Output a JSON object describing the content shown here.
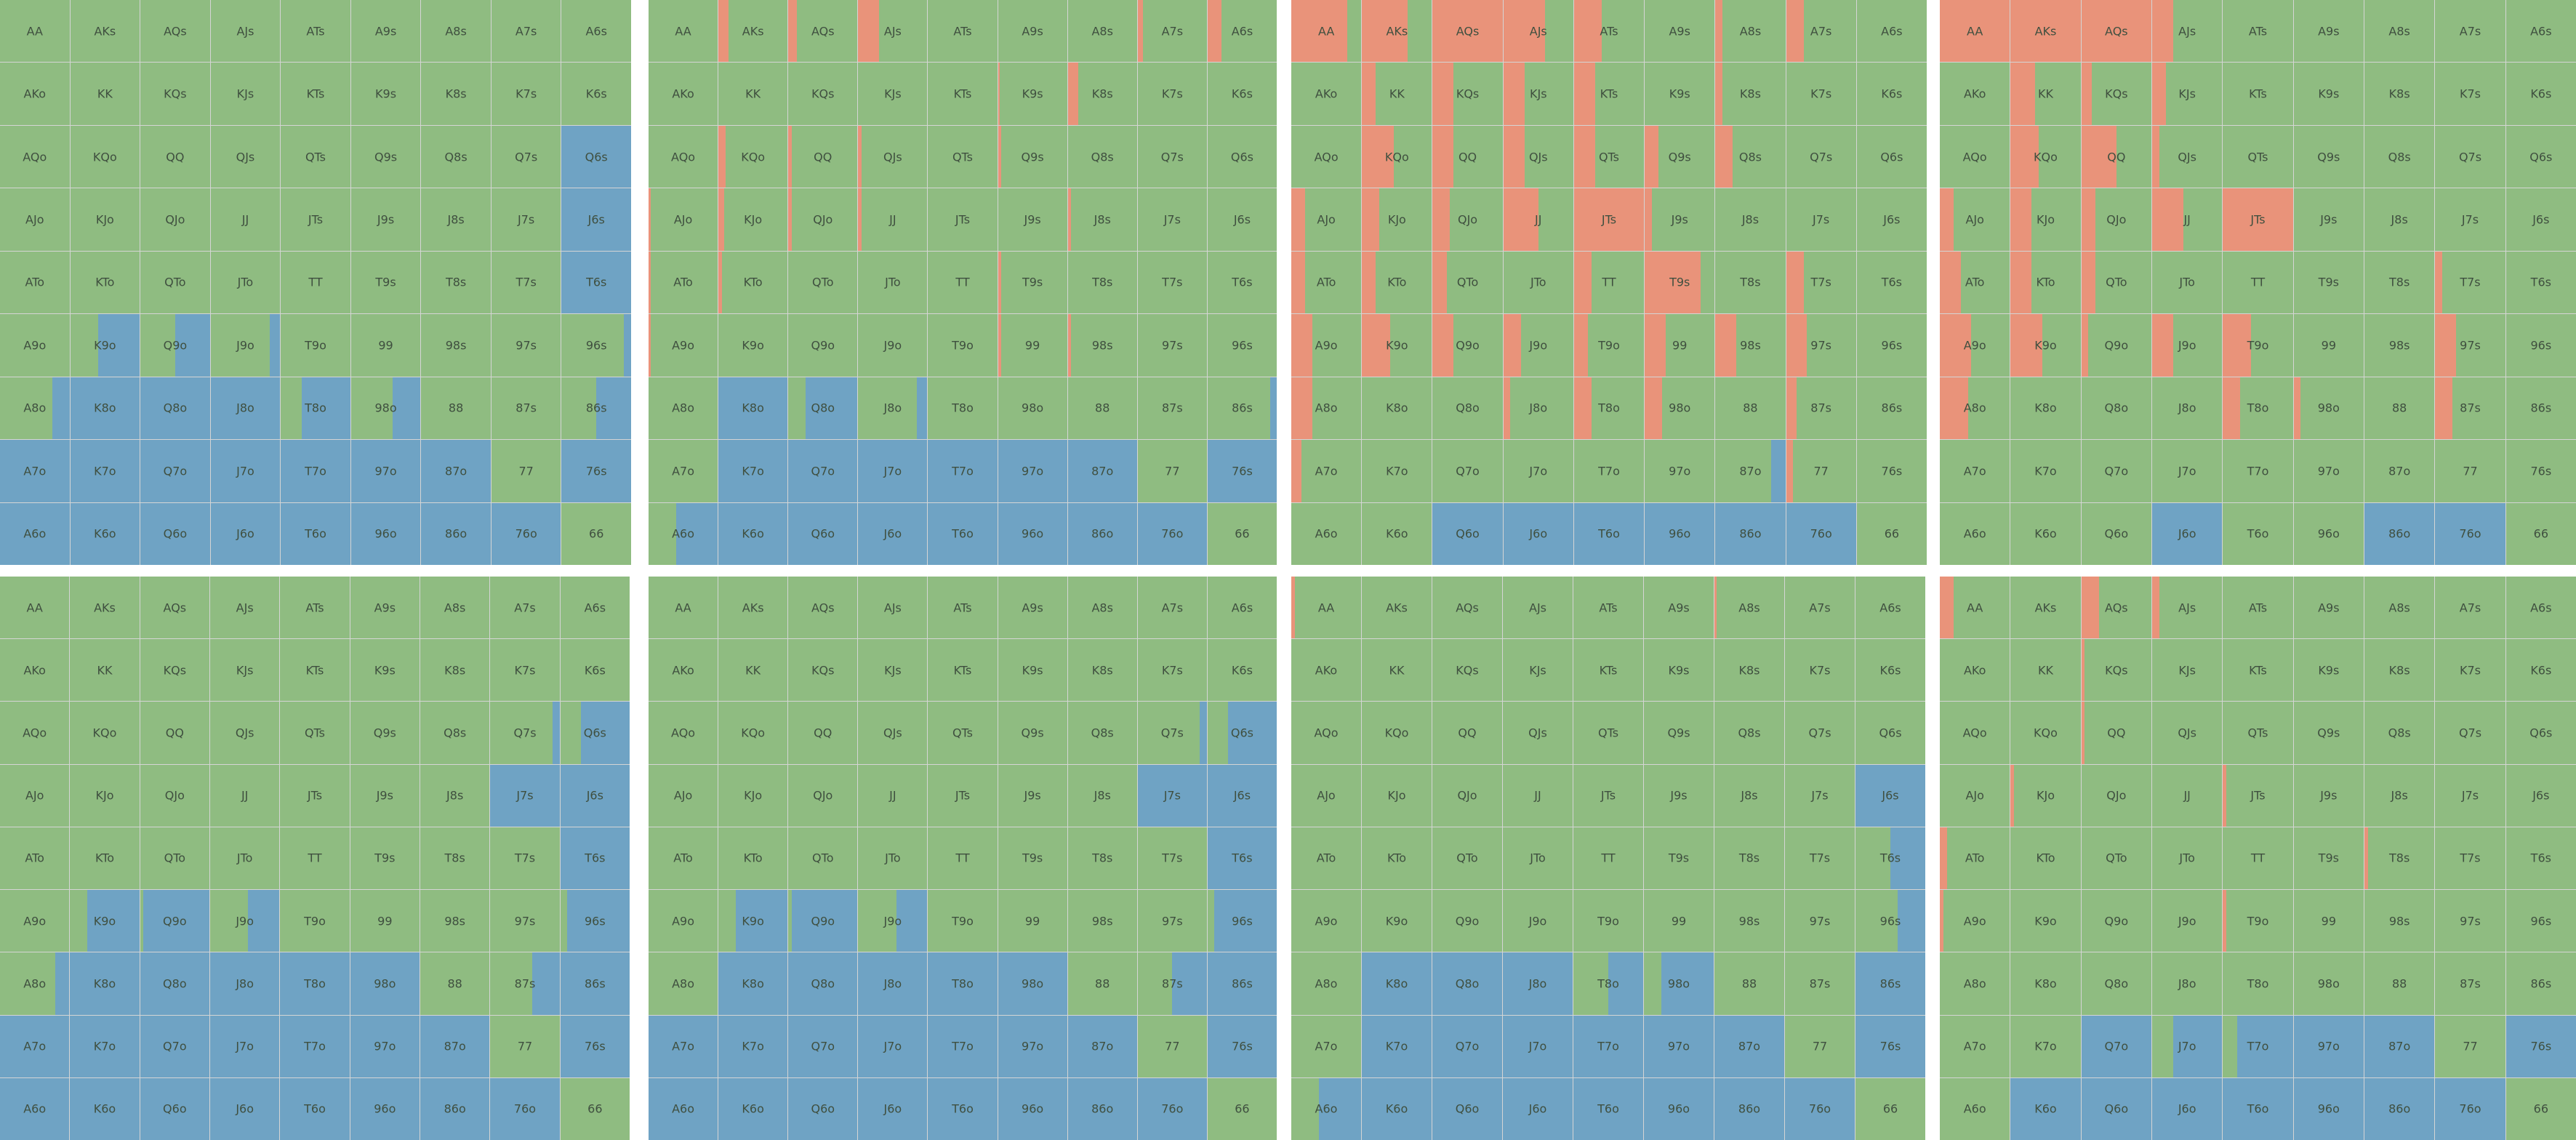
{
  "colors": {
    "green": "#8fbc81",
    "blue": "#6fa3c4",
    "red": "#e9937a"
  },
  "hands": [
    [
      "AA",
      "AKs",
      "AQs",
      "AJs",
      "ATs",
      "A9s",
      "A8s",
      "A7s",
      "A6s"
    ],
    [
      "AKo",
      "KK",
      "KQs",
      "KJs",
      "KTs",
      "K9s",
      "K8s",
      "K7s",
      "K6s"
    ],
    [
      "AQo",
      "KQo",
      "QQ",
      "QJs",
      "QTs",
      "Q9s",
      "Q8s",
      "Q7s",
      "Q6s"
    ],
    [
      "AJo",
      "KJo",
      "QJo",
      "JJ",
      "JTs",
      "J9s",
      "J8s",
      "J7s",
      "J6s"
    ],
    [
      "ATo",
      "KTo",
      "QTo",
      "JTo",
      "TT",
      "T9s",
      "T8s",
      "T7s",
      "T6s"
    ],
    [
      "A9o",
      "K9o",
      "Q9o",
      "J9o",
      "T9o",
      "99",
      "98s",
      "97s",
      "96s"
    ],
    [
      "A8o",
      "K8o",
      "Q8o",
      "J8o",
      "T8o",
      "98o",
      "88",
      "87s",
      "86s"
    ],
    [
      "A7o",
      "K7o",
      "Q7o",
      "J7o",
      "T7o",
      "97o",
      "87o",
      "77",
      "76s"
    ],
    [
      "A6o",
      "K6o",
      "Q6o",
      "J6o",
      "T6o",
      "96o",
      "86o",
      "76o",
      "66"
    ]
  ],
  "panels": [
    {
      "name": "panel-1",
      "cells": {
        "Q6s": {
          "blue": 1
        },
        "J6s": {
          "blue": 1
        },
        "T6s": {
          "blue": 1
        },
        "K9o": {
          "blue": 0.6
        },
        "Q9o": {
          "blue": 0.5
        },
        "J9o": {
          "blue": 0.15
        },
        "96s": {
          "blue": 0.1
        },
        "A8o": {
          "blue": 0.25
        },
        "K8o": {
          "blue": 1
        },
        "Q8o": {
          "blue": 1
        },
        "J8o": {
          "blue": 1
        },
        "T8o": {
          "blue": 0.7
        },
        "98o": {
          "blue": 0.4
        },
        "86s": {
          "blue": 0.5
        },
        "A7o": {
          "blue": 1
        },
        "K7o": {
          "blue": 1
        },
        "Q7o": {
          "blue": 1
        },
        "J7o": {
          "blue": 1
        },
        "T7o": {
          "blue": 1
        },
        "97o": {
          "blue": 1
        },
        "87o": {
          "blue": 1
        },
        "76s": {
          "blue": 1
        },
        "A6o": {
          "blue": 1
        },
        "K6o": {
          "blue": 1
        },
        "Q6o": {
          "blue": 1
        },
        "J6o": {
          "blue": 1
        },
        "T6o": {
          "blue": 1
        },
        "96o": {
          "blue": 1
        },
        "86o": {
          "blue": 1
        },
        "76o": {
          "blue": 1
        }
      }
    },
    {
      "name": "panel-2",
      "cells": {
        "AKs": {
          "red": 0.15
        },
        "AQs": {
          "red": 0.12
        },
        "AJs": {
          "red": 0.3
        },
        "A7s": {
          "red": 0.08
        },
        "A6s": {
          "red": 0.2
        },
        "K9s": {
          "red": 0.03
        },
        "K8s": {
          "red": 0.15
        },
        "KQo": {
          "red": 0.1
        },
        "QQ": {
          "red": 0.05
        },
        "QJs": {
          "red": 0.05
        },
        "Q9s": {
          "red": 0.05
        },
        "AJo": {
          "red": 0.03
        },
        "KJo": {
          "red": 0.08
        },
        "QJo": {
          "red": 0.05
        },
        "JJ": {
          "red": 0.05
        },
        "J8s": {
          "red": 0.05
        },
        "ATo": {
          "red": 0.03
        },
        "KTo": {
          "red": 0.05
        },
        "T9s": {
          "red": 0.05
        },
        "A9o": {
          "red": 0.03
        },
        "99": {
          "red": 0.05
        },
        "98s": {
          "red": 0.05
        },
        "86s": {
          "blue": 0.1
        },
        "K8o": {
          "blue": 1
        },
        "Q8o": {
          "blue": 0.75
        },
        "J8o": {
          "blue": 0.15
        },
        "K7o": {
          "blue": 1
        },
        "Q7o": {
          "blue": 1
        },
        "J7o": {
          "blue": 1
        },
        "T7o": {
          "blue": 1
        },
        "97o": {
          "blue": 1
        },
        "87o": {
          "blue": 1
        },
        "76s": {
          "blue": 1
        },
        "A6o": {
          "blue": 0.6
        },
        "K6o": {
          "blue": 1
        },
        "Q6o": {
          "blue": 1
        },
        "J6o": {
          "blue": 1
        },
        "T6o": {
          "blue": 1
        },
        "96o": {
          "blue": 1
        },
        "86o": {
          "blue": 1
        },
        "76o": {
          "blue": 1
        }
      }
    },
    {
      "name": "panel-3",
      "cells": {
        "AA": {
          "red": 0.8
        },
        "AKs": {
          "red": 0.65
        },
        "AQs": {
          "red": 1
        },
        "AJs": {
          "red": 0.6
        },
        "ATs": {
          "red": 0.4
        },
        "A8s": {
          "red": 0.1
        },
        "A7s": {
          "red": 0.25
        },
        "KK": {
          "red": 0.2
        },
        "KQs": {
          "red": 0.3
        },
        "KJs": {
          "red": 0.3
        },
        "KTs": {
          "red": 0.3
        },
        "K8s": {
          "red": 0.1
        },
        "KQo": {
          "red": 0.45
        },
        "QQ": {
          "red": 0.3
        },
        "QJs": {
          "red": 0.3
        },
        "QTs": {
          "red": 0.3
        },
        "Q9s": {
          "red": 0.2
        },
        "Q8s": {
          "red": 0.25
        },
        "AJo": {
          "red": 0.2
        },
        "KJo": {
          "red": 0.25
        },
        "QJo": {
          "red": 0.25
        },
        "JJ": {
          "red": 0.5
        },
        "JTs": {
          "red": 1
        },
        "J9s": {
          "red": 0.1
        },
        "ATo": {
          "red": 0.2
        },
        "KTo": {
          "red": 0.2
        },
        "QTo": {
          "red": 0.2
        },
        "TT": {
          "red": 0.25
        },
        "T9s": {
          "red": 0.8
        },
        "T7s": {
          "red": 0.25
        },
        "A9o": {
          "red": 0.3
        },
        "K9o": {
          "red": 0.4
        },
        "Q9o": {
          "red": 0.3
        },
        "J9o": {
          "red": 0.25
        },
        "T9o": {
          "red": 0.2
        },
        "99": {
          "red": 0.3
        },
        "98s": {
          "red": 0.3
        },
        "97s": {
          "red": 0.3
        },
        "A8o": {
          "red": 0.3
        },
        "J8o": {
          "red": 0.1
        },
        "T8o": {
          "red": 0.25
        },
        "98o": {
          "red": 0.25
        },
        "87s": {
          "red": 0.15
        },
        "A7o": {
          "red": 0.15
        },
        "87o": {
          "blue": 0.2
        },
        "77": {
          "red": 0.1
        },
        "Q6o": {
          "blue": 1
        },
        "J6o": {
          "blue": 1
        },
        "T6o": {
          "blue": 1
        },
        "96o": {
          "blue": 1
        },
        "86o": {
          "blue": 1
        },
        "76o": {
          "blue": 1
        }
      }
    },
    {
      "name": "panel-4",
      "cells": {
        "AA": {
          "red": 1
        },
        "AKs": {
          "red": 1
        },
        "AQs": {
          "red": 1
        },
        "AJs": {
          "red": 0.3
        },
        "KK": {
          "red": 0.35
        },
        "KQs": {
          "red": 0.15
        },
        "KJs": {
          "red": 0.2
        },
        "KQo": {
          "red": 0.4
        },
        "QQ": {
          "red": 0.5
        },
        "QJs": {
          "red": 0.1
        },
        "AJo": {
          "red": 0.2
        },
        "KJo": {
          "red": 0.3
        },
        "QJo": {
          "red": 0.2
        },
        "JJ": {
          "red": 0.45
        },
        "JTs": {
          "red": 1
        },
        "ATo": {
          "red": 0.3
        },
        "KTo": {
          "red": 0.3
        },
        "QTo": {
          "red": 0.2
        },
        "T7s": {
          "red": 0.1
        },
        "A9o": {
          "red": 0.45
        },
        "K9o": {
          "red": 0.45
        },
        "Q9o": {
          "red": 0.1
        },
        "J9o": {
          "red": 0.3
        },
        "T9o": {
          "red": 0.4
        },
        "97s": {
          "red": 0.3
        },
        "A8o": {
          "red": 0.4
        },
        "T8o": {
          "red": 0.25
        },
        "98o": {
          "red": 0.1
        },
        "87s": {
          "red": 0.25
        },
        "J6o": {
          "blue": 1
        },
        "86o": {
          "blue": 1
        },
        "76o": {
          "blue": 1
        }
      }
    },
    {
      "name": "panel-5",
      "cells": {
        "Q7s": {
          "blue": 0.1
        },
        "Q6s": {
          "blue": 0.7
        },
        "J7s": {
          "blue": 1
        },
        "J6s": {
          "blue": 1
        },
        "T6s": {
          "blue": 1
        },
        "K9o": {
          "blue": 0.75
        },
        "Q9o": {
          "blue": 0.95
        },
        "J9o": {
          "blue": 0.45
        },
        "96s": {
          "blue": 0.9
        },
        "A8o": {
          "blue": 0.2
        },
        "K8o": {
          "blue": 1
        },
        "Q8o": {
          "blue": 1
        },
        "J8o": {
          "blue": 1
        },
        "T8o": {
          "blue": 1
        },
        "98o": {
          "blue": 1
        },
        "87s": {
          "blue": 0.4
        },
        "86s": {
          "blue": 1
        },
        "A7o": {
          "blue": 1
        },
        "K7o": {
          "blue": 1
        },
        "Q7o": {
          "blue": 1
        },
        "J7o": {
          "blue": 1
        },
        "T7o": {
          "blue": 1
        },
        "97o": {
          "blue": 1
        },
        "87o": {
          "blue": 1
        },
        "76s": {
          "blue": 1
        },
        "A6o": {
          "blue": 1
        },
        "K6o": {
          "blue": 1
        },
        "Q6o": {
          "blue": 1
        },
        "J6o": {
          "blue": 1
        },
        "T6o": {
          "blue": 1
        },
        "96o": {
          "blue": 1
        },
        "86o": {
          "blue": 1
        },
        "76o": {
          "blue": 1
        }
      }
    },
    {
      "name": "panel-6",
      "cells": {
        "Q7s": {
          "blue": 0.1
        },
        "Q6s": {
          "blue": 0.7
        },
        "J7s": {
          "blue": 1
        },
        "J6s": {
          "blue": 1
        },
        "T6s": {
          "blue": 1
        },
        "K9o": {
          "blue": 0.75
        },
        "Q9o": {
          "blue": 0.95
        },
        "J9o": {
          "blue": 0.45
        },
        "96s": {
          "blue": 0.9
        },
        "K8o": {
          "blue": 1
        },
        "Q8o": {
          "blue": 1
        },
        "J8o": {
          "blue": 1
        },
        "T8o": {
          "blue": 1
        },
        "98o": {
          "blue": 1
        },
        "87s": {
          "blue": 0.5
        },
        "86s": {
          "blue": 1
        },
        "A7o": {
          "blue": 1
        },
        "K7o": {
          "blue": 1
        },
        "Q7o": {
          "blue": 1
        },
        "J7o": {
          "blue": 1
        },
        "T7o": {
          "blue": 1
        },
        "97o": {
          "blue": 1
        },
        "87o": {
          "blue": 1
        },
        "76s": {
          "blue": 1
        },
        "A6o": {
          "blue": 1
        },
        "K6o": {
          "blue": 1
        },
        "Q6o": {
          "blue": 1
        },
        "J6o": {
          "blue": 1
        },
        "T6o": {
          "blue": 1
        },
        "96o": {
          "blue": 1
        },
        "86o": {
          "blue": 1
        },
        "76o": {
          "blue": 1
        }
      }
    },
    {
      "name": "panel-7",
      "cells": {
        "AA": {
          "red": 0.05
        },
        "A8s": {
          "red": 0.03
        },
        "J6s": {
          "blue": 1
        },
        "T6s": {
          "blue": 0.5
        },
        "96s": {
          "blue": 0.4
        },
        "K8o": {
          "blue": 1
        },
        "Q8o": {
          "blue": 1
        },
        "J8o": {
          "blue": 1
        },
        "T8o": {
          "blue": 0.5
        },
        "98o": {
          "blue": 0.75
        },
        "86s": {
          "blue": 1
        },
        "K7o": {
          "blue": 1
        },
        "Q7o": {
          "blue": 1
        },
        "J7o": {
          "blue": 1
        },
        "T7o": {
          "blue": 1
        },
        "97o": {
          "blue": 1
        },
        "87o": {
          "blue": 1
        },
        "76s": {
          "blue": 1
        },
        "A6o": {
          "blue": 0.6
        },
        "K6o": {
          "blue": 1
        },
        "Q6o": {
          "blue": 1
        },
        "J6o": {
          "blue": 1
        },
        "T6o": {
          "blue": 1
        },
        "96o": {
          "blue": 1
        },
        "86o": {
          "blue": 1
        },
        "76o": {
          "blue": 1
        }
      }
    },
    {
      "name": "panel-8",
      "cells": {
        "AA": {
          "red": 0.2
        },
        "AQs": {
          "red": 0.25
        },
        "AJs": {
          "red": 0.1
        },
        "KQs": {
          "red": 0.05
        },
        "QQ": {
          "red": 0.05
        },
        "KJo": {
          "red": 0.05
        },
        "JTs": {
          "red": 0.05
        },
        "T8s": {
          "red": 0.05
        },
        "ATo": {
          "red": 0.1
        },
        "A9o": {
          "red": 0.05
        },
        "T9o": {
          "red": 0.05
        },
        "Q7o": {
          "blue": 1
        },
        "J7o": {
          "blue": 0.7
        },
        "T7o": {
          "blue": 0.8
        },
        "97o": {
          "blue": 1
        },
        "87o": {
          "blue": 1
        },
        "76s": {
          "blue": 1
        },
        "K6o": {
          "blue": 1
        },
        "Q6o": {
          "blue": 1
        },
        "J6o": {
          "blue": 1
        },
        "T6o": {
          "blue": 1
        },
        "96o": {
          "blue": 1
        },
        "86o": {
          "blue": 1
        },
        "76o": {
          "blue": 1
        }
      }
    }
  ]
}
